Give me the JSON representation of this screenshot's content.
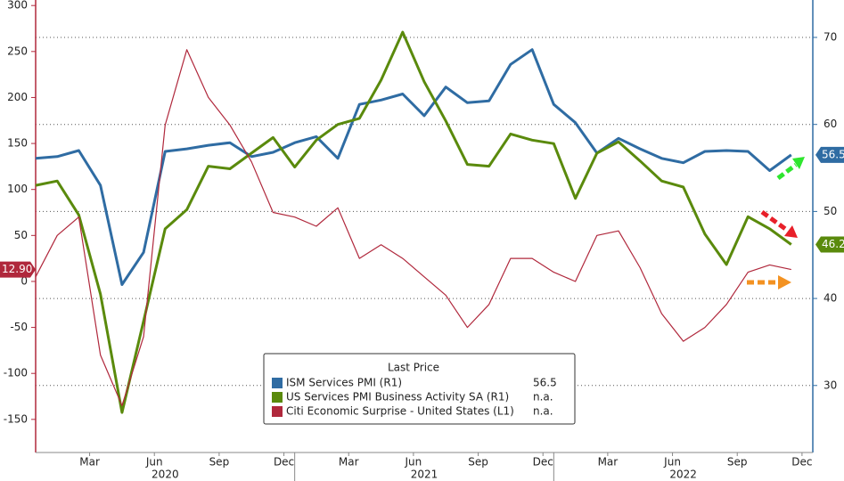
{
  "chart_data": {
    "type": "line",
    "x": [
      "2020-01",
      "2020-02",
      "2020-03",
      "2020-04",
      "2020-05",
      "2020-06",
      "2020-07",
      "2020-08",
      "2020-09",
      "2020-10",
      "2020-11",
      "2020-12",
      "2021-01",
      "2021-02",
      "2021-03",
      "2021-04",
      "2021-05",
      "2021-06",
      "2021-07",
      "2021-08",
      "2021-09",
      "2021-10",
      "2021-11",
      "2021-12",
      "2022-01",
      "2022-02",
      "2022-03",
      "2022-04",
      "2022-05",
      "2022-06",
      "2022-07",
      "2022-08",
      "2022-09",
      "2022-10",
      "2022-11",
      "2022-12"
    ],
    "xlim": [
      "2020-01",
      "2022-12"
    ],
    "xticks": [
      {
        "value": "2020-03",
        "label": "Mar"
      },
      {
        "value": "2020-06",
        "label": "Jun"
      },
      {
        "value": "2020-09",
        "label": "Sep"
      },
      {
        "value": "2020-12",
        "label": "Dec"
      },
      {
        "value": "2021-03",
        "label": "Mar"
      },
      {
        "value": "2021-06",
        "label": "Jun"
      },
      {
        "value": "2021-09",
        "label": "Sep"
      },
      {
        "value": "2021-12",
        "label": "Dec"
      },
      {
        "value": "2022-03",
        "label": "Mar"
      },
      {
        "value": "2022-06",
        "label": "Jun"
      },
      {
        "value": "2022-09",
        "label": "Sep"
      },
      {
        "value": "2022-12",
        "label": "Dec"
      }
    ],
    "xticks_major": [
      {
        "value": "2020-07",
        "label": "2020"
      },
      {
        "value": "2021-07",
        "label": "2021"
      },
      {
        "value": "2022-07",
        "label": "2022"
      }
    ],
    "ylim": [
      -186,
      306
    ],
    "yticks": [
      300,
      250,
      200,
      150,
      100,
      50,
      0,
      -50,
      -100,
      -150
    ],
    "y2lim": [
      22.3,
      74.3
    ],
    "y2ticks": [
      70,
      60,
      50,
      40,
      30
    ],
    "grid": true,
    "legend_title": "Last Price",
    "series": [
      {
        "name": "ISM Services PMI  (R1)",
        "color": "#2f6ca3",
        "axis": "y2",
        "last_price": 56.5,
        "values": [
          56.1,
          56.3,
          57.0,
          53.0,
          41.6,
          45.3,
          56.9,
          57.2,
          57.6,
          57.9,
          56.3,
          56.8,
          57.9,
          58.6,
          56.1,
          62.3,
          62.8,
          63.5,
          61.0,
          64.3,
          62.5,
          62.7,
          66.9,
          68.6,
          62.3,
          60.2,
          56.7,
          58.4,
          57.2,
          56.1,
          55.6,
          56.9,
          57.0,
          56.9,
          54.7,
          56.5
        ]
      },
      {
        "name": "US Services PMI Business Activity SA  (R1)",
        "color": "#5a8a0c",
        "axis": "y2",
        "last_price": "n.a.",
        "values": [
          53.0,
          53.5,
          49.6,
          40.5,
          26.9,
          37.4,
          48.0,
          50.2,
          55.2,
          54.9,
          56.7,
          58.5,
          55.1,
          58.2,
          60.0,
          60.7,
          65.1,
          70.6,
          64.9,
          60.4,
          55.4,
          55.2,
          58.9,
          58.2,
          57.8,
          51.5,
          56.7,
          58.0,
          55.8,
          53.5,
          52.8,
          47.4,
          43.9,
          49.4,
          48.0,
          46.2
        ]
      },
      {
        "name": "Citi Economic Surprise - United States  (L1)",
        "color": "#b0283c",
        "last_price": "n.a.",
        "values": [
          5,
          50,
          70,
          -80,
          -135,
          -60,
          170,
          252,
          200,
          170,
          130,
          75,
          70,
          60,
          80,
          25,
          40,
          25,
          5,
          -15,
          -50,
          -25,
          25,
          25,
          10,
          0,
          50,
          55,
          15,
          -35,
          -65,
          -50,
          -25,
          10,
          18,
          12.9
        ],
        "value_labels": [
          null,
          null,
          null,
          null,
          null,
          null,
          null,
          null,
          null,
          null,
          null,
          null,
          null,
          null,
          null,
          null,
          null,
          null,
          null,
          null,
          null,
          null,
          null,
          null,
          null,
          null,
          null,
          null,
          null,
          null,
          null,
          null,
          null,
          null,
          null,
          "12.90"
        ]
      }
    ]
  }
}
